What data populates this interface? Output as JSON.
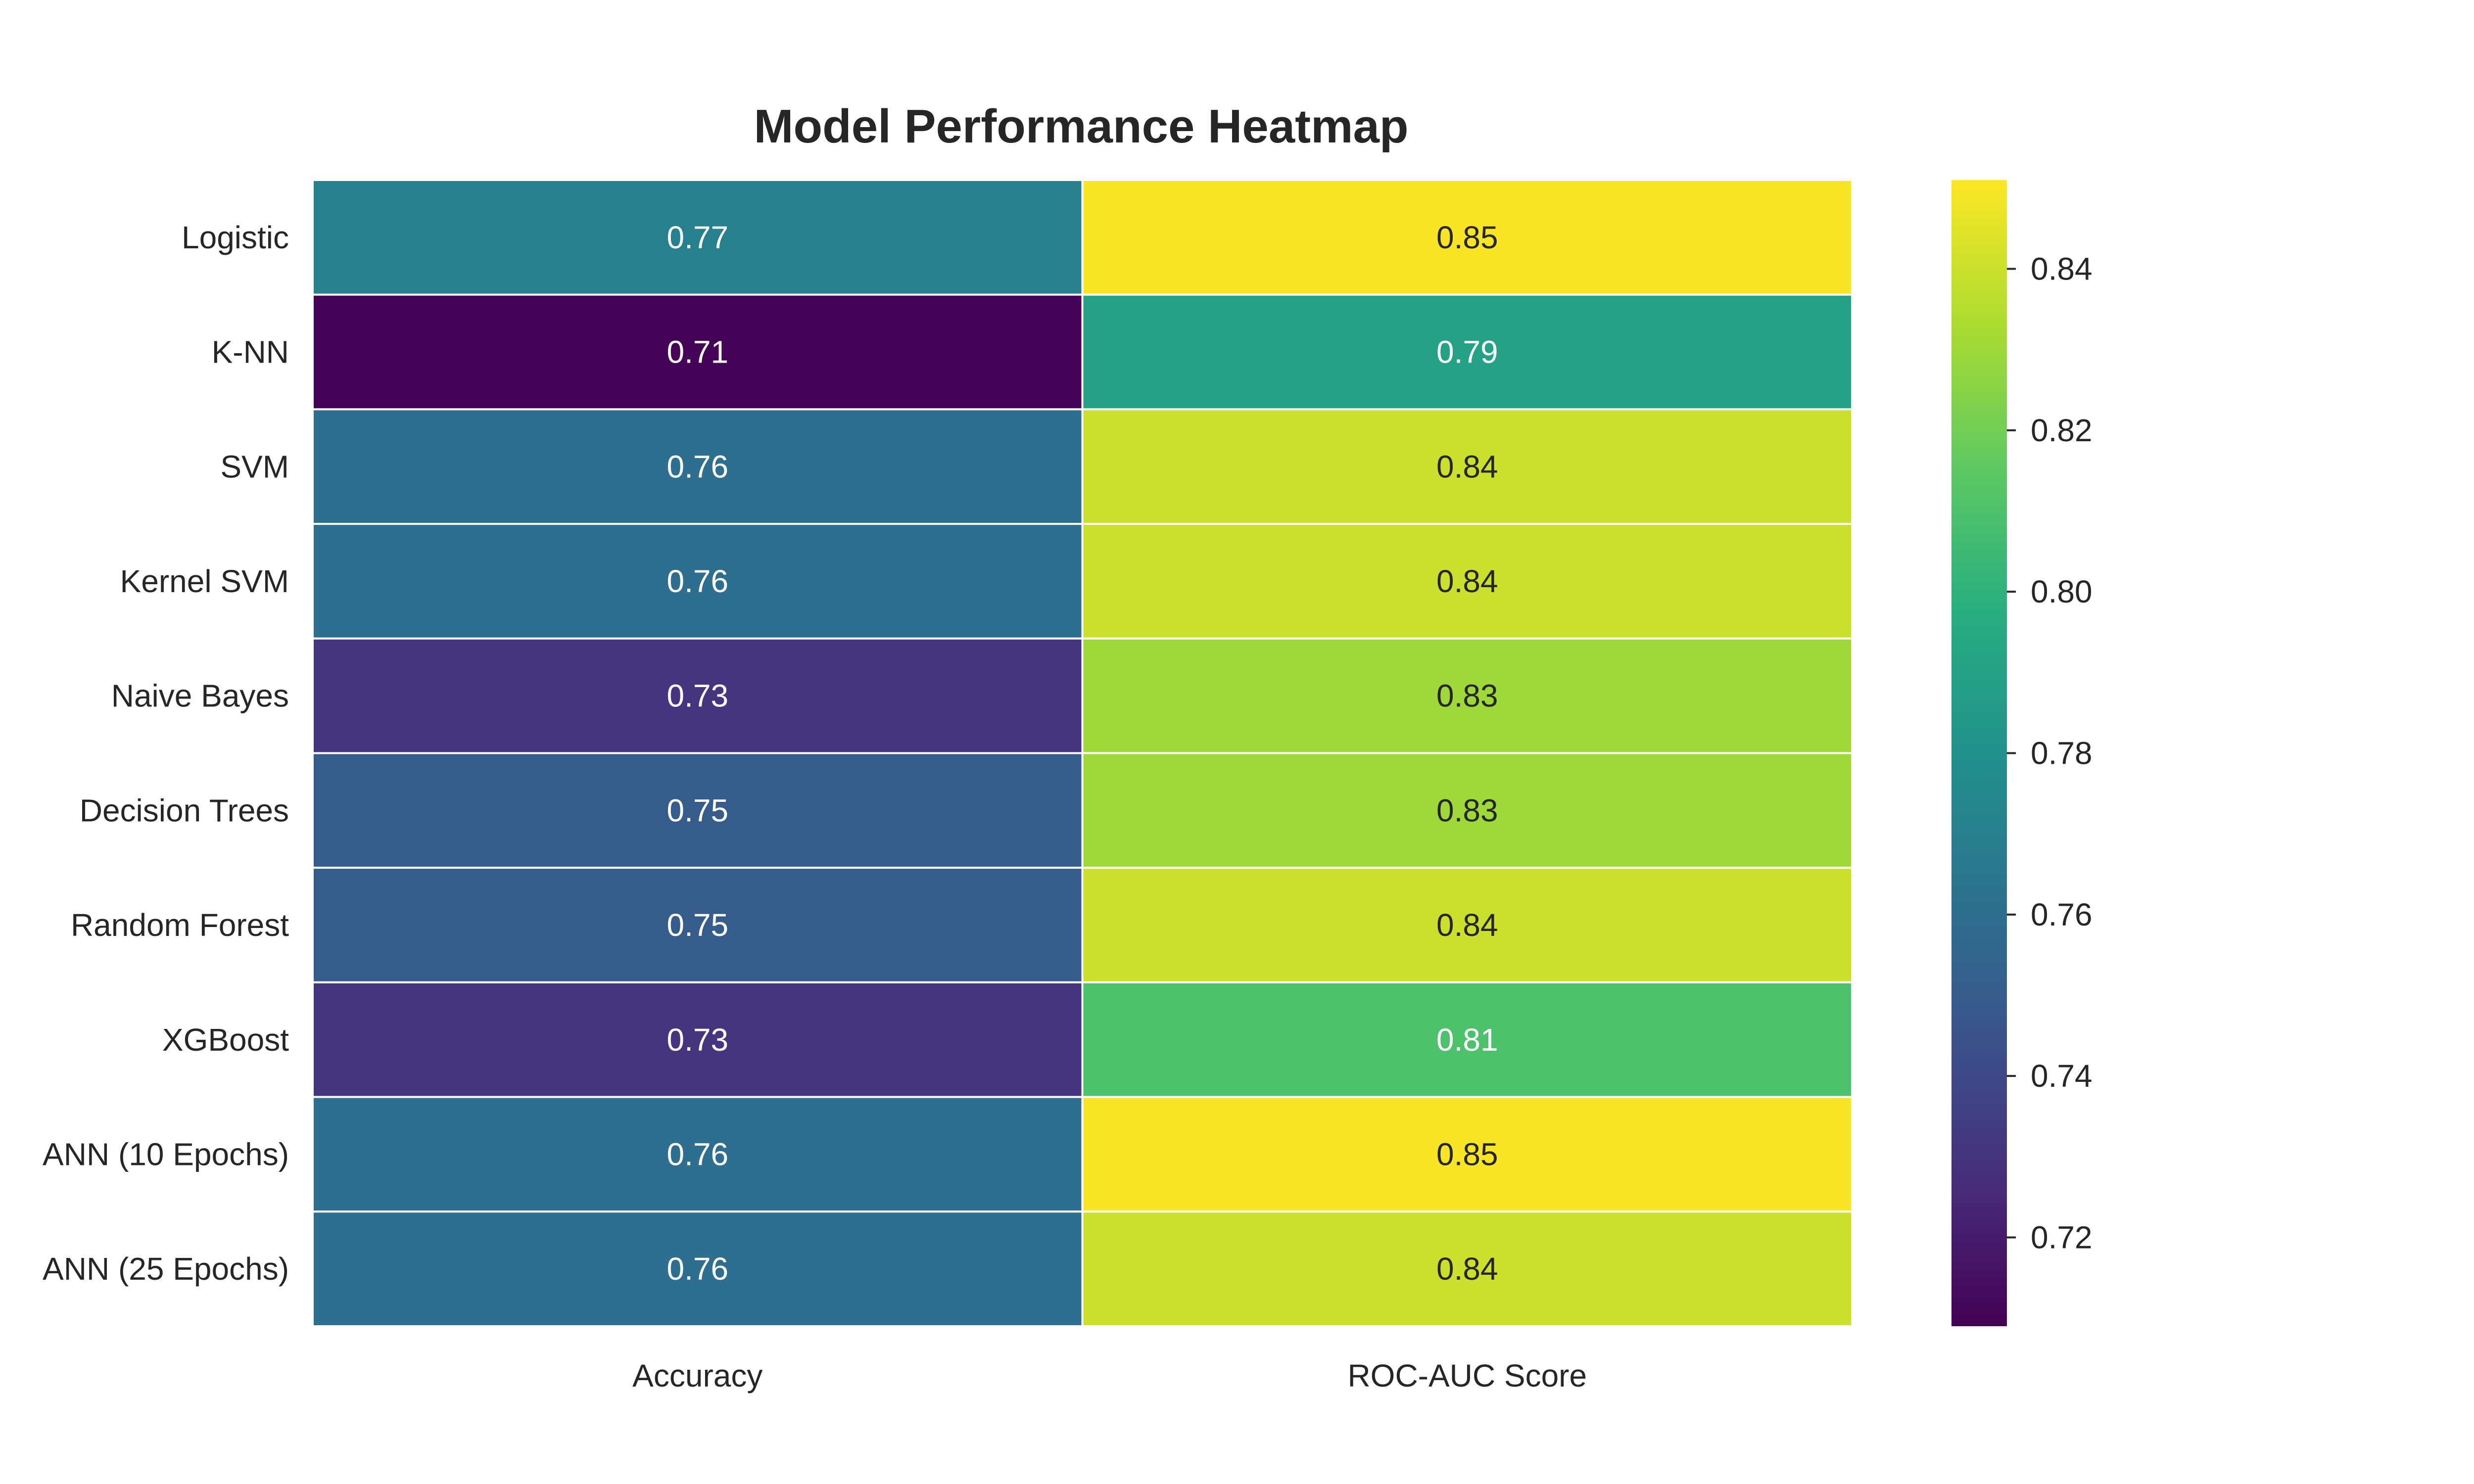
{
  "chart_data": {
    "type": "heatmap",
    "title": "Model Performance Heatmap",
    "rows": [
      "Logistic",
      "K-NN",
      "SVM",
      "Kernel SVM",
      "Naive Bayes",
      "Decision Trees",
      "Random Forest",
      "XGBoost",
      "ANN (10 Epochs)",
      "ANN (25 Epochs)"
    ],
    "columns": [
      "Accuracy",
      "ROC-AUC Score"
    ],
    "values": [
      [
        0.77,
        0.85
      ],
      [
        0.71,
        0.79
      ],
      [
        0.76,
        0.84
      ],
      [
        0.76,
        0.84
      ],
      [
        0.73,
        0.83
      ],
      [
        0.75,
        0.83
      ],
      [
        0.75,
        0.84
      ],
      [
        0.73,
        0.81
      ],
      [
        0.76,
        0.85
      ],
      [
        0.76,
        0.84
      ]
    ],
    "cell_labels": [
      [
        "0.77",
        "0.85"
      ],
      [
        "0.71",
        "0.79"
      ],
      [
        "0.76",
        "0.84"
      ],
      [
        "0.76",
        "0.84"
      ],
      [
        "0.73",
        "0.83"
      ],
      [
        "0.75",
        "0.83"
      ],
      [
        "0.75",
        "0.84"
      ],
      [
        "0.73",
        "0.81"
      ],
      [
        "0.76",
        "0.85"
      ],
      [
        "0.76",
        "0.84"
      ]
    ],
    "colormap": "viridis",
    "color_range": [
      0.709,
      0.851
    ],
    "colorbar_ticks": [
      0.72,
      0.74,
      0.76,
      0.78,
      0.8,
      0.82,
      0.84
    ],
    "colorbar_tick_labels": [
      "0.72",
      "0.74",
      "0.76",
      "0.78",
      "0.80",
      "0.82",
      "0.84"
    ],
    "grid_line_color": "#ffffff"
  }
}
